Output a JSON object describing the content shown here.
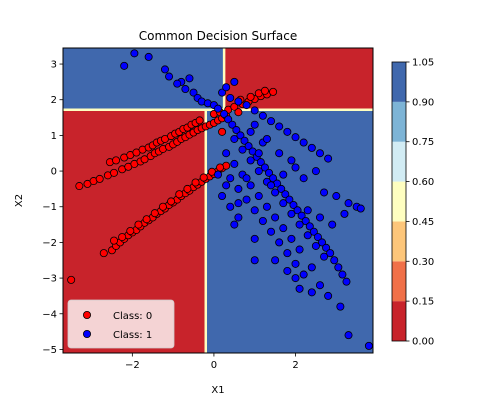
{
  "chart_data": {
    "type": "scatter",
    "title": "Common Decision Surface",
    "xlabel": "X1",
    "ylabel": "X2",
    "xlim": [
      -3.7,
      3.9
    ],
    "ylim": [
      -5.1,
      3.45
    ],
    "x_ticks": [
      -2,
      0,
      2
    ],
    "x_tick_labels": [
      "−2",
      "0",
      "2"
    ],
    "y_ticks": [
      3,
      2,
      1,
      0,
      -1,
      -2,
      -3,
      -4,
      -5
    ],
    "y_tick_labels": [
      "3",
      "2",
      "1",
      "0",
      "−1",
      "−2",
      "−3",
      "−4",
      "−5"
    ],
    "grid": false,
    "decision_regions": {
      "split_x_lower": -0.2,
      "split_x_upper": 0.25,
      "split_y": 1.72,
      "upper_left_class": 1,
      "upper_right_class": 0,
      "lower_left_class": 0,
      "lower_right_class": 1
    },
    "colors": {
      "class_0_region": "#c8232b",
      "class_1_region": "#4068ad",
      "boundary": "#fefec0",
      "class_0_marker": "#ff0000",
      "class_1_marker": "#0000ff",
      "marker_edge": "#000000"
    },
    "colorbar": {
      "ticks": [
        0.0,
        0.15,
        0.3,
        0.45,
        0.6,
        0.75,
        0.9,
        1.05
      ],
      "tick_labels": [
        "0.00",
        "0.15",
        "0.30",
        "0.45",
        "0.60",
        "0.75",
        "0.90",
        "1.05"
      ],
      "band_colors": [
        "#c8232b",
        "#f07048",
        "#fdc67a",
        "#fefec0",
        "#d2ecf4",
        "#7db4d6",
        "#4068ad"
      ]
    },
    "legend": {
      "placement": "lower-left",
      "entries": [
        {
          "label": "Class: 0",
          "color": "#ff0000"
        },
        {
          "label": "Class: 1",
          "color": "#0000ff"
        }
      ]
    },
    "series": [
      {
        "name": "Class: 0",
        "color": "#ff0000",
        "points": [
          [
            -3.3,
            -0.42
          ],
          [
            -3.1,
            -0.36
          ],
          [
            -2.95,
            -0.28
          ],
          [
            -2.8,
            -0.22
          ],
          [
            -2.6,
            -0.12
          ],
          [
            -2.45,
            -0.05
          ],
          [
            -2.25,
            0.05
          ],
          [
            -2.1,
            0.12
          ],
          [
            -1.95,
            0.2
          ],
          [
            -1.8,
            0.27
          ],
          [
            -1.7,
            0.33
          ],
          [
            -1.55,
            0.42
          ],
          [
            -1.45,
            0.5
          ],
          [
            -1.35,
            0.55
          ],
          [
            -1.25,
            0.62
          ],
          [
            -1.1,
            0.68
          ],
          [
            -1.0,
            0.75
          ],
          [
            -0.9,
            0.82
          ],
          [
            -0.8,
            0.9
          ],
          [
            -0.7,
            0.95
          ],
          [
            -0.6,
            1.02
          ],
          [
            -0.5,
            1.08
          ],
          [
            -0.4,
            1.15
          ],
          [
            -0.3,
            1.2
          ],
          [
            -0.2,
            1.25
          ],
          [
            -0.1,
            1.3
          ],
          [
            0.0,
            1.35
          ],
          [
            0.1,
            1.42
          ],
          [
            0.2,
            1.48
          ],
          [
            0.3,
            1.55
          ],
          [
            -2.55,
            0.25
          ],
          [
            -2.4,
            0.3
          ],
          [
            -2.2,
            0.38
          ],
          [
            -2.05,
            0.45
          ],
          [
            -1.9,
            0.52
          ],
          [
            -1.75,
            0.6
          ],
          [
            -1.6,
            0.66
          ],
          [
            -1.5,
            0.72
          ],
          [
            -1.4,
            0.8
          ],
          [
            -1.3,
            0.85
          ],
          [
            -1.2,
            0.9
          ],
          [
            -1.05,
            0.98
          ],
          [
            -0.95,
            1.05
          ],
          [
            -0.85,
            1.1
          ],
          [
            -0.75,
            1.18
          ],
          [
            -0.65,
            1.22
          ],
          [
            -0.55,
            1.3
          ],
          [
            -0.45,
            1.35
          ],
          [
            -0.35,
            1.42
          ],
          [
            0.0,
            1.6
          ],
          [
            0.15,
            1.65
          ],
          [
            0.35,
            1.72
          ],
          [
            0.5,
            1.8
          ],
          [
            0.7,
            1.88
          ],
          [
            0.85,
            1.95
          ],
          [
            1.0,
            2.02
          ],
          [
            1.15,
            2.1
          ],
          [
            1.3,
            2.15
          ],
          [
            1.45,
            2.22
          ],
          [
            0.65,
            2.0
          ],
          [
            0.9,
            2.08
          ],
          [
            1.1,
            2.18
          ],
          [
            1.25,
            2.25
          ],
          [
            0.6,
            1.65
          ],
          [
            0.2,
            1.1
          ],
          [
            -2.7,
            -2.3
          ],
          [
            -2.5,
            -2.22
          ],
          [
            -2.4,
            -2.1
          ],
          [
            -2.3,
            -2.0
          ],
          [
            -2.2,
            -1.9
          ],
          [
            -2.1,
            -1.8
          ],
          [
            -2.0,
            -1.72
          ],
          [
            -1.9,
            -1.65
          ],
          [
            -1.8,
            -1.55
          ],
          [
            -1.7,
            -1.45
          ],
          [
            -1.6,
            -1.38
          ],
          [
            -1.5,
            -1.3
          ],
          [
            -1.4,
            -1.2
          ],
          [
            -1.3,
            -1.12
          ],
          [
            -1.2,
            -1.05
          ],
          [
            -1.1,
            -0.95
          ],
          [
            -1.0,
            -0.88
          ],
          [
            -0.9,
            -0.8
          ],
          [
            -0.8,
            -0.7
          ],
          [
            -0.7,
            -0.62
          ],
          [
            -0.6,
            -0.55
          ],
          [
            -0.5,
            -0.45
          ],
          [
            -0.4,
            -0.38
          ],
          [
            -0.3,
            -0.3
          ],
          [
            -0.2,
            -0.22
          ],
          [
            -0.1,
            -0.15
          ],
          [
            0.0,
            -0.08
          ],
          [
            0.1,
            0.0
          ],
          [
            0.2,
            0.08
          ],
          [
            0.3,
            0.15
          ],
          [
            -2.45,
            -1.95
          ],
          [
            -2.25,
            -1.85
          ],
          [
            -2.05,
            -1.68
          ],
          [
            -1.85,
            -1.5
          ],
          [
            -1.65,
            -1.35
          ],
          [
            -1.45,
            -1.18
          ],
          [
            -1.25,
            -1.0
          ],
          [
            -1.05,
            -0.85
          ],
          [
            -0.85,
            -0.65
          ],
          [
            -0.65,
            -0.5
          ],
          [
            -0.45,
            -0.32
          ],
          [
            -0.25,
            -0.18
          ],
          [
            -0.05,
            -0.02
          ],
          [
            0.15,
            0.1
          ],
          [
            -3.5,
            -3.05
          ]
        ]
      },
      {
        "name": "Class: 1",
        "color": "#0000ff",
        "points": [
          [
            -1.95,
            3.3
          ],
          [
            -2.2,
            2.95
          ],
          [
            -1.6,
            3.2
          ],
          [
            -1.2,
            2.85
          ],
          [
            -1.1,
            2.65
          ],
          [
            -0.8,
            2.5
          ],
          [
            -0.7,
            2.3
          ],
          [
            -0.5,
            2.2
          ],
          [
            -0.4,
            2.05
          ],
          [
            -0.3,
            1.95
          ],
          [
            -0.15,
            1.9
          ],
          [
            0.0,
            1.85
          ],
          [
            0.1,
            1.75
          ],
          [
            0.25,
            1.6
          ],
          [
            0.35,
            1.45
          ],
          [
            0.45,
            1.3
          ],
          [
            0.55,
            1.15
          ],
          [
            0.65,
            1.0
          ],
          [
            0.75,
            0.85
          ],
          [
            0.85,
            0.7
          ],
          [
            0.95,
            0.55
          ],
          [
            1.05,
            0.4
          ],
          [
            1.15,
            0.25
          ],
          [
            1.25,
            0.1
          ],
          [
            1.35,
            -0.05
          ],
          [
            1.45,
            -0.2
          ],
          [
            1.55,
            -0.35
          ],
          [
            1.65,
            -0.5
          ],
          [
            1.75,
            -0.65
          ],
          [
            1.85,
            -0.8
          ],
          [
            1.95,
            -0.95
          ],
          [
            2.05,
            -1.1
          ],
          [
            2.15,
            -1.25
          ],
          [
            2.25,
            -1.4
          ],
          [
            2.35,
            -1.55
          ],
          [
            2.45,
            -1.7
          ],
          [
            2.55,
            -1.85
          ],
          [
            2.65,
            -2.0
          ],
          [
            2.75,
            -2.15
          ],
          [
            2.85,
            -2.3
          ],
          [
            2.95,
            -2.5
          ],
          [
            3.05,
            -2.7
          ],
          [
            3.15,
            -2.9
          ],
          [
            3.25,
            -3.1
          ],
          [
            0.2,
            2.2
          ],
          [
            0.4,
            2.05
          ],
          [
            0.6,
            1.95
          ],
          [
            0.8,
            1.85
          ],
          [
            1.0,
            1.7
          ],
          [
            1.2,
            1.55
          ],
          [
            1.4,
            1.4
          ],
          [
            1.6,
            1.25
          ],
          [
            1.8,
            1.1
          ],
          [
            2.0,
            0.95
          ],
          [
            2.2,
            0.8
          ],
          [
            2.4,
            0.65
          ],
          [
            2.6,
            0.5
          ],
          [
            2.8,
            0.35
          ],
          [
            0.5,
            0.9
          ],
          [
            0.7,
            0.6
          ],
          [
            0.9,
            0.3
          ],
          [
            1.1,
            0.0
          ],
          [
            1.3,
            -0.3
          ],
          [
            1.5,
            -0.6
          ],
          [
            1.7,
            -0.9
          ],
          [
            1.9,
            -1.2
          ],
          [
            2.1,
            -1.5
          ],
          [
            2.3,
            -1.8
          ],
          [
            2.5,
            -2.1
          ],
          [
            2.7,
            -2.4
          ],
          [
            0.3,
            0.5
          ],
          [
            0.5,
            0.2
          ],
          [
            0.7,
            -0.1
          ],
          [
            0.9,
            -0.4
          ],
          [
            1.1,
            -0.7
          ],
          [
            1.3,
            -1.0
          ],
          [
            1.5,
            -1.3
          ],
          [
            1.7,
            -1.6
          ],
          [
            1.9,
            -1.9
          ],
          [
            2.1,
            -2.2
          ],
          [
            0.4,
            -0.2
          ],
          [
            0.6,
            -0.5
          ],
          [
            0.8,
            -0.8
          ],
          [
            1.0,
            -1.1
          ],
          [
            1.2,
            -1.4
          ],
          [
            1.4,
            -1.7
          ],
          [
            1.6,
            -2.0
          ],
          [
            1.8,
            -2.3
          ],
          [
            2.0,
            -2.6
          ],
          [
            2.2,
            -2.9
          ],
          [
            0.2,
            -0.7
          ],
          [
            0.4,
            -1.0
          ],
          [
            0.6,
            -1.3
          ],
          [
            1.0,
            -1.9
          ],
          [
            1.5,
            -2.5
          ],
          [
            2.0,
            -3.0
          ],
          [
            2.6,
            -3.2
          ],
          [
            2.8,
            -3.5
          ],
          [
            3.1,
            -3.8
          ],
          [
            3.3,
            -4.6
          ],
          [
            3.8,
            -4.9
          ],
          [
            1.8,
            -2.8
          ],
          [
            2.4,
            -2.7
          ],
          [
            3.5,
            -1.0
          ],
          [
            3.3,
            -0.9
          ],
          [
            3.0,
            -0.7
          ],
          [
            2.2,
            -0.2
          ],
          [
            2.0,
            0.1
          ],
          [
            2.5,
            0.0
          ],
          [
            1.6,
            0.5
          ],
          [
            1.2,
            0.8
          ],
          [
            0.9,
            1.1
          ],
          [
            0.3,
            2.35
          ],
          [
            0.5,
            2.5
          ],
          [
            -0.6,
            2.6
          ],
          [
            -0.9,
            2.45
          ],
          [
            1.0,
            1.3
          ],
          [
            1.3,
            0.9
          ],
          [
            1.1,
            0.5
          ],
          [
            0.8,
            -0.2
          ],
          [
            0.6,
            -0.9
          ],
          [
            1.4,
            -0.4
          ],
          [
            1.7,
            -0.1
          ],
          [
            1.9,
            0.3
          ],
          [
            2.3,
            -1.1
          ],
          [
            2.6,
            -1.3
          ],
          [
            2.9,
            -1.5
          ],
          [
            1.0,
            -2.5
          ],
          [
            0.5,
            -1.5
          ],
          [
            0.3,
            -0.4
          ],
          [
            0.1,
            -0.1
          ],
          [
            2.7,
            -0.6
          ],
          [
            3.2,
            -1.2
          ],
          [
            3.6,
            -1.05
          ],
          [
            2.1,
            -3.3
          ],
          [
            2.4,
            -3.4
          ]
        ]
      }
    ]
  }
}
